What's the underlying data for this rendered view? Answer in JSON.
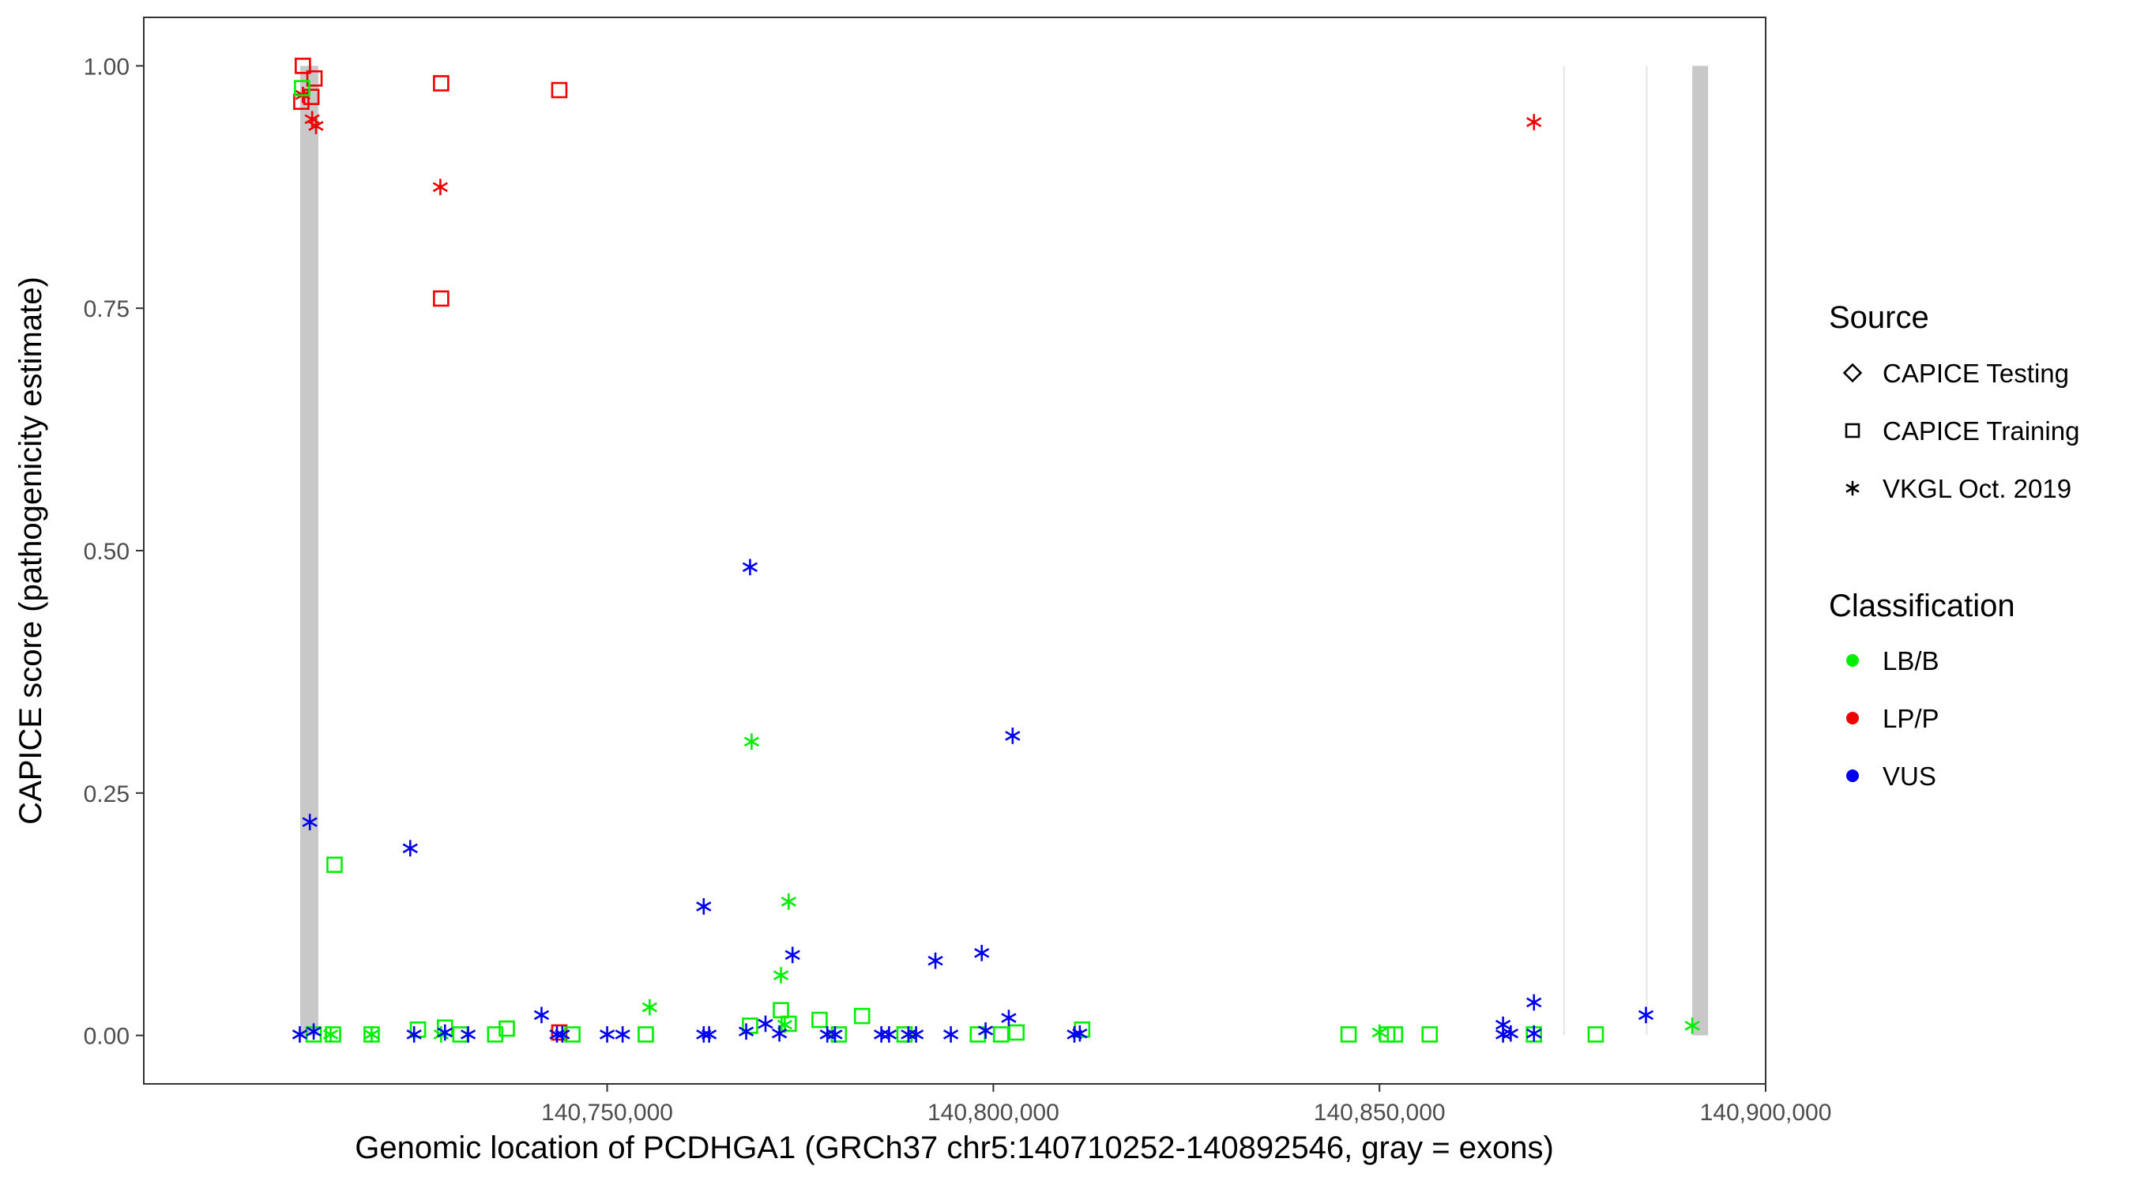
{
  "chart_data": {
    "type": "scatter",
    "title": "",
    "xlabel": "Genomic location of PCDHGA1 (GRCh37 chr5:140710252-140892546, gray = exons)",
    "ylabel": "CAPICE score (pathogenicity estimate)",
    "xlim": [
      140690000,
      140900000
    ],
    "ylim": [
      -0.05,
      1.05
    ],
    "xticks": [
      140750000,
      140800000,
      140850000,
      140900000
    ],
    "xtick_labels": [
      "140,750,000",
      "140,800,000",
      "140,850,000",
      "140,900,000"
    ],
    "yticks": [
      0,
      0.25,
      0.5,
      0.75,
      1.0
    ],
    "ytick_labels": [
      "0.00",
      "0.25",
      "0.50",
      "0.75",
      "1.00"
    ],
    "grid": false,
    "legend_position": "right",
    "exons": [
      {
        "start": 140710252,
        "end": 140712600
      },
      {
        "start": 140873800,
        "end": 140874000
      },
      {
        "start": 140884500,
        "end": 140884700
      },
      {
        "start": 140890500,
        "end": 140892546
      }
    ],
    "exon_color": "#c8c8c8",
    "source_legend": {
      "title": "Source",
      "items": [
        {
          "label": "CAPICE Testing",
          "shape": "diamond"
        },
        {
          "label": "CAPICE Training",
          "shape": "square"
        },
        {
          "label": "VKGL Oct. 2019",
          "shape": "asterisk"
        }
      ]
    },
    "class_legend": {
      "title": "Classification",
      "items": [
        {
          "label": "LB/B",
          "color": "#00ee00"
        },
        {
          "label": "LP/P",
          "color": "#ee0000"
        },
        {
          "label": "VUS",
          "color": "#0000ee"
        }
      ]
    },
    "series": [
      {
        "name": "LP/P",
        "color": "#ee0000",
        "points": [
          {
            "x": 140710600,
            "y": 1.0,
            "shape": "square"
          },
          {
            "x": 140710400,
            "y": 0.963,
            "shape": "square"
          },
          {
            "x": 140711700,
            "y": 0.968,
            "shape": "square"
          },
          {
            "x": 140712100,
            "y": 0.987,
            "shape": "square"
          },
          {
            "x": 140728500,
            "y": 0.982,
            "shape": "square"
          },
          {
            "x": 140743800,
            "y": 0.975,
            "shape": "square"
          },
          {
            "x": 140728500,
            "y": 0.76,
            "shape": "square"
          },
          {
            "x": 140710600,
            "y": 0.97,
            "shape": "asterisk"
          },
          {
            "x": 140711800,
            "y": 0.945,
            "shape": "asterisk"
          },
          {
            "x": 140712300,
            "y": 0.938,
            "shape": "asterisk"
          },
          {
            "x": 140728400,
            "y": 0.875,
            "shape": "asterisk"
          },
          {
            "x": 140743800,
            "y": 0.003,
            "shape": "square"
          },
          {
            "x": 140870000,
            "y": 0.942,
            "shape": "asterisk"
          }
        ]
      },
      {
        "name": "LB/B",
        "color": "#00ee00",
        "points": [
          {
            "x": 140710500,
            "y": 0.977,
            "shape": "square"
          },
          {
            "x": 140714700,
            "y": 0.176,
            "shape": "square"
          },
          {
            "x": 140712000,
            "y": 0.001,
            "shape": "square"
          },
          {
            "x": 140714500,
            "y": 0.001,
            "shape": "square"
          },
          {
            "x": 140719500,
            "y": 0.001,
            "shape": "square"
          },
          {
            "x": 140725500,
            "y": 0.006,
            "shape": "square"
          },
          {
            "x": 140729000,
            "y": 0.008,
            "shape": "square"
          },
          {
            "x": 140731000,
            "y": 0.001,
            "shape": "square"
          },
          {
            "x": 140735500,
            "y": 0.001,
            "shape": "square"
          },
          {
            "x": 140737000,
            "y": 0.007,
            "shape": "square"
          },
          {
            "x": 140745500,
            "y": 0.001,
            "shape": "square"
          },
          {
            "x": 140755000,
            "y": 0.001,
            "shape": "square"
          },
          {
            "x": 140768500,
            "y": 0.01,
            "shape": "square"
          },
          {
            "x": 140772500,
            "y": 0.026,
            "shape": "square"
          },
          {
            "x": 140773500,
            "y": 0.012,
            "shape": "square"
          },
          {
            "x": 140777500,
            "y": 0.016,
            "shape": "square"
          },
          {
            "x": 140780000,
            "y": 0.001,
            "shape": "square"
          },
          {
            "x": 140783000,
            "y": 0.02,
            "shape": "square"
          },
          {
            "x": 140788500,
            "y": 0.001,
            "shape": "square"
          },
          {
            "x": 140798000,
            "y": 0.001,
            "shape": "square"
          },
          {
            "x": 140801000,
            "y": 0.001,
            "shape": "square"
          },
          {
            "x": 140803000,
            "y": 0.003,
            "shape": "square"
          },
          {
            "x": 140811500,
            "y": 0.006,
            "shape": "square"
          },
          {
            "x": 140846000,
            "y": 0.001,
            "shape": "square"
          },
          {
            "x": 140851000,
            "y": 0.001,
            "shape": "square"
          },
          {
            "x": 140852000,
            "y": 0.001,
            "shape": "square"
          },
          {
            "x": 140856500,
            "y": 0.001,
            "shape": "square"
          },
          {
            "x": 140870000,
            "y": 0.001,
            "shape": "square"
          },
          {
            "x": 140878000,
            "y": 0.001,
            "shape": "square"
          },
          {
            "x": 140768700,
            "y": 0.303,
            "shape": "asterisk"
          },
          {
            "x": 140773500,
            "y": 0.138,
            "shape": "asterisk"
          },
          {
            "x": 140772500,
            "y": 0.062,
            "shape": "asterisk"
          },
          {
            "x": 140773000,
            "y": 0.011,
            "shape": "asterisk"
          },
          {
            "x": 140755500,
            "y": 0.029,
            "shape": "asterisk"
          },
          {
            "x": 140719500,
            "y": 0.001,
            "shape": "asterisk"
          },
          {
            "x": 140714200,
            "y": 0.001,
            "shape": "asterisk"
          },
          {
            "x": 140728500,
            "y": 0.001,
            "shape": "asterisk"
          },
          {
            "x": 140850000,
            "y": 0.003,
            "shape": "asterisk"
          },
          {
            "x": 140890500,
            "y": 0.01,
            "shape": "asterisk"
          }
        ]
      },
      {
        "name": "VUS",
        "color": "#0000ee",
        "points": [
          {
            "x": 140768500,
            "y": 0.483,
            "shape": "asterisk"
          },
          {
            "x": 140802500,
            "y": 0.309,
            "shape": "asterisk"
          },
          {
            "x": 140711500,
            "y": 0.22,
            "shape": "asterisk"
          },
          {
            "x": 140724500,
            "y": 0.193,
            "shape": "asterisk"
          },
          {
            "x": 140762500,
            "y": 0.133,
            "shape": "asterisk"
          },
          {
            "x": 140774000,
            "y": 0.083,
            "shape": "asterisk"
          },
          {
            "x": 140792500,
            "y": 0.077,
            "shape": "asterisk"
          },
          {
            "x": 140798500,
            "y": 0.085,
            "shape": "asterisk"
          },
          {
            "x": 140741500,
            "y": 0.021,
            "shape": "asterisk"
          },
          {
            "x": 140770500,
            "y": 0.012,
            "shape": "asterisk"
          },
          {
            "x": 140802000,
            "y": 0.018,
            "shape": "asterisk"
          },
          {
            "x": 140799000,
            "y": 0.005,
            "shape": "asterisk"
          },
          {
            "x": 140710200,
            "y": 0.001,
            "shape": "asterisk"
          },
          {
            "x": 140712000,
            "y": 0.004,
            "shape": "asterisk"
          },
          {
            "x": 140725000,
            "y": 0.001,
            "shape": "asterisk"
          },
          {
            "x": 140729000,
            "y": 0.003,
            "shape": "asterisk"
          },
          {
            "x": 140732000,
            "y": 0.001,
            "shape": "asterisk"
          },
          {
            "x": 140743500,
            "y": 0.001,
            "shape": "asterisk"
          },
          {
            "x": 140744200,
            "y": 0.001,
            "shape": "asterisk"
          },
          {
            "x": 140750000,
            "y": 0.001,
            "shape": "asterisk"
          },
          {
            "x": 140752000,
            "y": 0.001,
            "shape": "asterisk"
          },
          {
            "x": 140762500,
            "y": 0.001,
            "shape": "asterisk"
          },
          {
            "x": 140763200,
            "y": 0.001,
            "shape": "asterisk"
          },
          {
            "x": 140768000,
            "y": 0.004,
            "shape": "asterisk"
          },
          {
            "x": 140772300,
            "y": 0.002,
            "shape": "asterisk"
          },
          {
            "x": 140778500,
            "y": 0.001,
            "shape": "asterisk"
          },
          {
            "x": 140779500,
            "y": 0.001,
            "shape": "asterisk"
          },
          {
            "x": 140785500,
            "y": 0.001,
            "shape": "asterisk"
          },
          {
            "x": 140786500,
            "y": 0.001,
            "shape": "asterisk"
          },
          {
            "x": 140789000,
            "y": 0.001,
            "shape": "asterisk"
          },
          {
            "x": 140790000,
            "y": 0.001,
            "shape": "asterisk"
          },
          {
            "x": 140794500,
            "y": 0.001,
            "shape": "asterisk"
          },
          {
            "x": 140810500,
            "y": 0.001,
            "shape": "asterisk"
          },
          {
            "x": 140811200,
            "y": 0.002,
            "shape": "asterisk"
          },
          {
            "x": 140866000,
            "y": 0.011,
            "shape": "asterisk"
          },
          {
            "x": 140866000,
            "y": 0.001,
            "shape": "asterisk"
          },
          {
            "x": 140867000,
            "y": 0.002,
            "shape": "asterisk"
          },
          {
            "x": 140870000,
            "y": 0.034,
            "shape": "asterisk"
          },
          {
            "x": 140870000,
            "y": 0.002,
            "shape": "asterisk"
          },
          {
            "x": 140884500,
            "y": 0.021,
            "shape": "asterisk"
          }
        ]
      }
    ]
  }
}
